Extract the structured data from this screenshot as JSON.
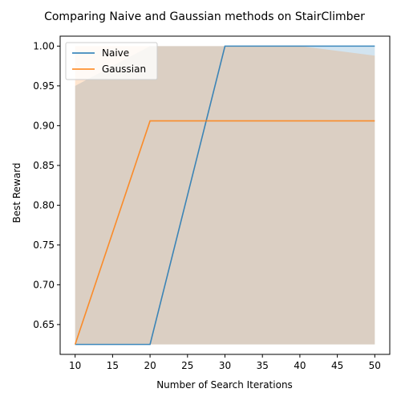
{
  "chart_data": {
    "type": "line",
    "title": "Comparing Naive and Gaussian methods on StairClimber",
    "xlabel": "Number of Search Iterations",
    "ylabel": "Best Reward",
    "x": [
      10,
      20,
      30,
      40,
      50
    ],
    "xlim": [
      8,
      52
    ],
    "ylim": [
      0.6125,
      1.0125
    ],
    "xticks": [
      10,
      15,
      20,
      25,
      30,
      35,
      40,
      45,
      50
    ],
    "yticks": [
      0.65,
      0.7,
      0.75,
      0.8,
      0.85,
      0.9,
      0.95,
      1.0
    ],
    "ytick_labels": [
      "0.65",
      "0.70",
      "0.75",
      "0.80",
      "0.85",
      "0.90",
      "0.95",
      "1.00"
    ],
    "series": [
      {
        "name": "Naive",
        "color": "#1f77b4",
        "values": [
          0.625,
          0.625,
          1.0,
          1.0,
          1.0
        ],
        "band_lower": [
          0.625,
          0.625,
          0.625,
          0.625,
          0.625
        ],
        "band_upper": [
          0.95,
          1.0,
          1.0,
          1.0,
          1.0
        ]
      },
      {
        "name": "Gaussian",
        "color": "#ff7f0e",
        "values": [
          0.625,
          0.906,
          0.906,
          0.906,
          0.906
        ],
        "band_lower": [
          0.625,
          0.625,
          0.625,
          0.625,
          0.625
        ],
        "band_upper": [
          1.0,
          1.0,
          1.0,
          1.0,
          0.988
        ]
      }
    ],
    "legend_position": "top-left",
    "grid": false
  }
}
